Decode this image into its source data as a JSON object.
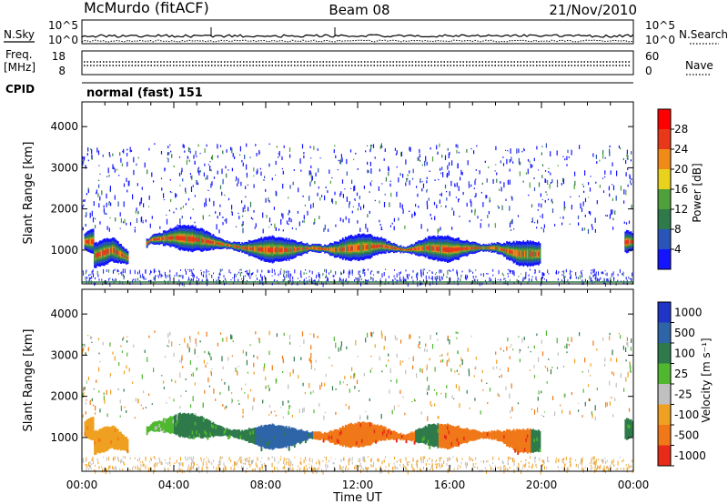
{
  "header": {
    "station": "McMurdo (fitACF)",
    "beam": "Beam 08",
    "date": "21/Nov/2010"
  },
  "aux": {
    "nsky_label": "N.Sky",
    "nsearch_label": "N.Search",
    "freq_label_1": "Freq.",
    "freq_label_2": "[MHz]",
    "nave_label": "Nave",
    "cpid_label": "CPID",
    "cpid_value": "normal (fast) 151",
    "noise_ticks": [
      "10^5",
      "10^0"
    ],
    "noise_ticks_right": [
      "10^5",
      "10^0"
    ],
    "freq_ticks": [
      "18",
      "8"
    ],
    "nave_ticks": [
      "60",
      "0"
    ]
  },
  "chart_data": [
    {
      "type": "heatmap",
      "title": "",
      "xlabel": "Time UT",
      "ylabel": "Slant Range [km]",
      "x_ticks": [
        "00:00",
        "04:00",
        "08:00",
        "12:00",
        "16:00",
        "20:00",
        "00:00"
      ],
      "y_ticks": [
        "1000",
        "2000",
        "3000",
        "4000"
      ],
      "xlim_hours": [
        0,
        24
      ],
      "ylim_km": [
        180,
        4600
      ],
      "colorbar": {
        "label": "Power [dB]",
        "ticks": [
          "4",
          "8",
          "12",
          "16",
          "20",
          "24",
          "28"
        ],
        "colors": [
          "#1414ff",
          "#2a55b8",
          "#2e7a4a",
          "#4fa03a",
          "#e8d21e",
          "#f08a18",
          "#e8381a",
          "#ff0000"
        ]
      },
      "echo_band": {
        "center_km": [
          [
            0.5,
            850
          ],
          [
            1.3,
            1000
          ],
          [
            2.0,
            800
          ],
          [
            3.0,
            1250
          ],
          [
            4.0,
            1300
          ],
          [
            5.0,
            1250
          ],
          [
            6.0,
            1150
          ],
          [
            7.0,
            1050
          ],
          [
            8.0,
            1000
          ],
          [
            9.0,
            1000
          ],
          [
            10.0,
            1050
          ],
          [
            11.0,
            1000
          ],
          [
            12.0,
            1050
          ],
          [
            13.0,
            1100
          ],
          [
            14.0,
            1000
          ],
          [
            15.0,
            1050
          ],
          [
            16.0,
            1000
          ],
          [
            17.0,
            1050
          ],
          [
            18.0,
            1050
          ],
          [
            19.0,
            900
          ],
          [
            19.8,
            900
          ],
          [
            23.8,
            1200
          ]
        ],
        "peak_power_db": 28
      }
    },
    {
      "type": "heatmap",
      "title": "",
      "xlabel": "Time UT",
      "ylabel": "Slant Range [km]",
      "x_ticks": [
        "00:00",
        "04:00",
        "08:00",
        "12:00",
        "16:00",
        "20:00",
        "00:00"
      ],
      "y_ticks": [
        "1000",
        "2000",
        "3000",
        "4000"
      ],
      "xlim_hours": [
        0,
        24
      ],
      "ylim_km": [
        180,
        4600
      ],
      "colorbar": {
        "label": "Velocity [m s⁻¹]",
        "ticks": [
          "1000",
          "500",
          "100",
          "25",
          "-25",
          "-100",
          "-500",
          "-1000"
        ],
        "colors": [
          "#2035c8",
          "#2e64a8",
          "#2e7a4a",
          "#4fb82e",
          "#c0c0c0",
          "#f0a020",
          "#f07818",
          "#e82a18"
        ]
      },
      "velocity_segments": [
        {
          "from_h": 0.0,
          "to_h": 2.0,
          "velocity": -100
        },
        {
          "from_h": 2.0,
          "to_h": 4.0,
          "velocity": 25
        },
        {
          "from_h": 4.0,
          "to_h": 7.5,
          "velocity": 100
        },
        {
          "from_h": 7.5,
          "to_h": 10.0,
          "velocity": 500
        },
        {
          "from_h": 10.0,
          "to_h": 14.5,
          "velocity": -500
        },
        {
          "from_h": 14.5,
          "to_h": 15.5,
          "velocity": 100
        },
        {
          "from_h": 15.5,
          "to_h": 19.5,
          "velocity": -500
        },
        {
          "from_h": 19.5,
          "to_h": 24.0,
          "velocity": 100
        }
      ]
    }
  ]
}
